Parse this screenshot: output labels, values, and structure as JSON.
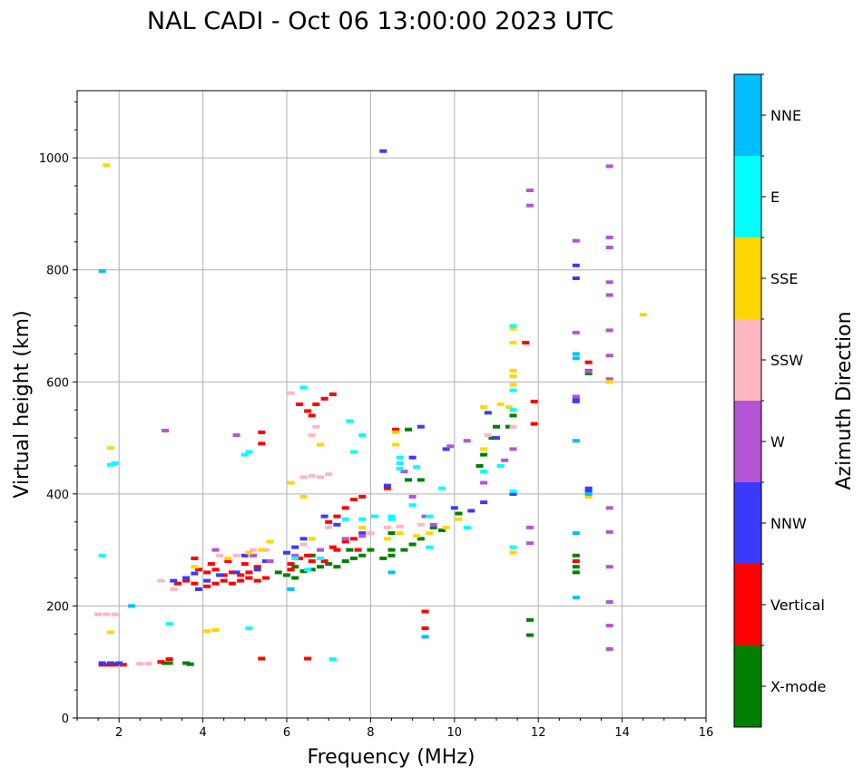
{
  "chart_data": {
    "type": "scatter",
    "title": "NAL CADI - Oct 06 13:00:00 2023 UTC",
    "xlabel": "Frequency (MHz)",
    "ylabel": "Virtual height (km)",
    "xlim": [
      1.0,
      16.0
    ],
    "ylim": [
      0,
      1120
    ],
    "xticks": [
      2,
      4,
      6,
      8,
      10,
      12,
      14,
      16
    ],
    "yticks": [
      0,
      200,
      400,
      600,
      800,
      1000
    ],
    "grid": true,
    "colorbar": {
      "label": "Azimuth Direction",
      "categories": [
        "X-mode",
        "Vertical",
        "NNW",
        "W",
        "SSW",
        "SSE",
        "E",
        "NNE"
      ],
      "colors": [
        "#008000",
        "#ff0000",
        "#3a3aff",
        "#b455d5",
        "#ffb6c1",
        "#ffd700",
        "#00ffff",
        "#00bfff"
      ]
    },
    "series": [
      {
        "name": "X-mode",
        "points": [
          [
            1.6,
            96
          ],
          [
            1.9,
            96
          ],
          [
            3.1,
            98
          ],
          [
            3.2,
            98
          ],
          [
            3.6,
            98
          ],
          [
            3.7,
            96
          ],
          [
            5.8,
            260
          ],
          [
            6.0,
            255
          ],
          [
            6.2,
            250
          ],
          [
            6.4,
            262
          ],
          [
            6.6,
            265
          ],
          [
            6.8,
            270
          ],
          [
            7.0,
            275
          ],
          [
            7.2,
            270
          ],
          [
            7.4,
            280
          ],
          [
            7.6,
            285
          ],
          [
            7.8,
            290
          ],
          [
            8.3,
            285
          ],
          [
            8.5,
            290
          ],
          [
            8.5,
            330
          ],
          [
            8.8,
            300
          ],
          [
            9.0,
            310
          ],
          [
            9.2,
            320
          ],
          [
            8.9,
            425
          ],
          [
            9.2,
            425
          ],
          [
            8.9,
            515
          ],
          [
            9.7,
            335
          ],
          [
            10.1,
            365
          ],
          [
            10.6,
            450
          ],
          [
            10.7,
            470
          ],
          [
            10.9,
            500
          ],
          [
            11.0,
            520
          ],
          [
            11.3,
            520
          ],
          [
            11.4,
            540
          ],
          [
            12.9,
            290
          ],
          [
            12.9,
            270
          ],
          [
            12.9,
            260
          ],
          [
            11.8,
            175
          ],
          [
            11.8,
            148
          ],
          [
            13.2,
            615
          ],
          [
            6.2,
            270
          ],
          [
            6.6,
            290
          ],
          [
            7.5,
            300
          ],
          [
            8.0,
            300
          ],
          [
            8.5,
            300
          ],
          [
            9.5,
            340
          ]
        ]
      },
      {
        "name": "Vertical",
        "points": [
          [
            1.6,
            95
          ],
          [
            1.75,
            95
          ],
          [
            1.9,
            95
          ],
          [
            2.1,
            95
          ],
          [
            3.0,
            100
          ],
          [
            3.2,
            105
          ],
          [
            5.4,
            106
          ],
          [
            6.5,
            106
          ],
          [
            3.4,
            240
          ],
          [
            3.6,
            245
          ],
          [
            3.8,
            240
          ],
          [
            3.9,
            230
          ],
          [
            4.1,
            235
          ],
          [
            4.3,
            240
          ],
          [
            4.5,
            245
          ],
          [
            4.7,
            240
          ],
          [
            4.9,
            245
          ],
          [
            5.1,
            250
          ],
          [
            5.3,
            245
          ],
          [
            5.5,
            250
          ],
          [
            3.9,
            265
          ],
          [
            4.1,
            260
          ],
          [
            4.3,
            265
          ],
          [
            4.5,
            255
          ],
          [
            4.7,
            260
          ],
          [
            4.9,
            255
          ],
          [
            5.1,
            260
          ],
          [
            5.3,
            270
          ],
          [
            3.8,
            285
          ],
          [
            4.2,
            275
          ],
          [
            4.6,
            280
          ],
          [
            5.0,
            275
          ],
          [
            6.1,
            275
          ],
          [
            6.3,
            285
          ],
          [
            6.5,
            290
          ],
          [
            6.8,
            300
          ],
          [
            7.1,
            305
          ],
          [
            7.4,
            315
          ],
          [
            7.6,
            320
          ],
          [
            6.1,
            265
          ],
          [
            6.6,
            280
          ],
          [
            6.9,
            280
          ],
          [
            7.0,
            350
          ],
          [
            7.2,
            360
          ],
          [
            7.4,
            375
          ],
          [
            7.6,
            390
          ],
          [
            7.8,
            395
          ],
          [
            7.7,
            300
          ],
          [
            7.2,
            300
          ],
          [
            6.3,
            560
          ],
          [
            6.5,
            548
          ],
          [
            6.6,
            540
          ],
          [
            6.7,
            560
          ],
          [
            6.9,
            570
          ],
          [
            7.1,
            578
          ],
          [
            5.4,
            490
          ],
          [
            5.4,
            510
          ],
          [
            11.9,
            565
          ],
          [
            11.9,
            525
          ],
          [
            11.7,
            670
          ],
          [
            9.3,
            190
          ],
          [
            9.3,
            160
          ],
          [
            12.9,
            280
          ],
          [
            13.2,
            635
          ],
          [
            13.2,
            620
          ],
          [
            8.4,
            410
          ],
          [
            8.6,
            515
          ]
        ]
      },
      {
        "name": "NNW",
        "points": [
          [
            1.6,
            98
          ],
          [
            1.8,
            98
          ],
          [
            2.0,
            98
          ],
          [
            3.3,
            245
          ],
          [
            3.6,
            250
          ],
          [
            3.8,
            258
          ],
          [
            4.1,
            245
          ],
          [
            4.4,
            255
          ],
          [
            4.8,
            260
          ],
          [
            5.3,
            265
          ],
          [
            5.5,
            280
          ],
          [
            6.0,
            295
          ],
          [
            6.2,
            305
          ],
          [
            6.4,
            320
          ],
          [
            8.3,
            1012
          ],
          [
            8.4,
            415
          ],
          [
            9.0,
            465
          ],
          [
            9.2,
            520
          ],
          [
            9.8,
            480
          ],
          [
            10.0,
            375
          ],
          [
            10.4,
            370
          ],
          [
            10.7,
            385
          ],
          [
            10.8,
            545
          ],
          [
            11.0,
            500
          ],
          [
            11.4,
            400
          ],
          [
            12.9,
            808
          ],
          [
            12.9,
            785
          ],
          [
            12.9,
            570
          ],
          [
            12.9,
            565
          ],
          [
            13.2,
            410
          ],
          [
            13.2,
            405
          ],
          [
            6.9,
            360
          ],
          [
            7.2,
            345
          ],
          [
            3.9,
            230
          ],
          [
            5.0,
            290
          ],
          [
            7.8,
            330
          ]
        ]
      },
      {
        "name": "W",
        "points": [
          [
            3.1,
            513
          ],
          [
            4.8,
            505
          ],
          [
            5.6,
            280
          ],
          [
            6.2,
            290
          ],
          [
            6.8,
            300
          ],
          [
            7.4,
            320
          ],
          [
            7.8,
            325
          ],
          [
            8.8,
            440
          ],
          [
            9.0,
            395
          ],
          [
            9.3,
            360
          ],
          [
            9.5,
            345
          ],
          [
            9.9,
            485
          ],
          [
            10.3,
            495
          ],
          [
            10.7,
            420
          ],
          [
            11.2,
            460
          ],
          [
            11.4,
            480
          ],
          [
            11.8,
            942
          ],
          [
            11.8,
            915
          ],
          [
            11.8,
            340
          ],
          [
            11.8,
            312
          ],
          [
            12.9,
            852
          ],
          [
            12.9,
            688
          ],
          [
            12.9,
            574
          ],
          [
            13.2,
            619
          ],
          [
            13.7,
            985
          ],
          [
            13.7,
            858
          ],
          [
            13.7,
            840
          ],
          [
            13.7,
            778
          ],
          [
            13.7,
            755
          ],
          [
            13.7,
            692
          ],
          [
            13.7,
            647
          ],
          [
            13.7,
            605
          ],
          [
            13.7,
            375
          ],
          [
            13.7,
            332
          ],
          [
            13.7,
            270
          ],
          [
            13.7,
            207
          ],
          [
            13.7,
            165
          ],
          [
            13.7,
            123
          ],
          [
            4.3,
            300
          ],
          [
            5.2,
            290
          ]
        ]
      },
      {
        "name": "SSW",
        "points": [
          [
            1.5,
            185
          ],
          [
            1.7,
            185
          ],
          [
            1.9,
            185
          ],
          [
            2.5,
            97
          ],
          [
            2.7,
            97
          ],
          [
            3.0,
            245
          ],
          [
            3.3,
            230
          ],
          [
            4.4,
            290
          ],
          [
            4.8,
            290
          ],
          [
            5.2,
            300
          ],
          [
            5.5,
            300
          ],
          [
            6.4,
            430
          ],
          [
            6.6,
            432
          ],
          [
            6.8,
            430
          ],
          [
            7.0,
            435
          ],
          [
            6.6,
            505
          ],
          [
            6.7,
            520
          ],
          [
            6.4,
            310
          ],
          [
            7.0,
            340
          ],
          [
            8.0,
            330
          ],
          [
            8.4,
            340
          ],
          [
            8.7,
            342
          ],
          [
            9.2,
            345
          ],
          [
            10.8,
            505
          ],
          [
            11.4,
            520
          ],
          [
            13.7,
            600
          ],
          [
            6.1,
            580
          ]
        ]
      },
      {
        "name": "SSE",
        "points": [
          [
            1.7,
            987
          ],
          [
            1.8,
            482
          ],
          [
            1.8,
            153
          ],
          [
            4.1,
            155
          ],
          [
            4.3,
            157
          ],
          [
            5.1,
            295
          ],
          [
            5.4,
            300
          ],
          [
            5.6,
            315
          ],
          [
            6.1,
            420
          ],
          [
            6.4,
            395
          ],
          [
            6.8,
            488
          ],
          [
            7.8,
            340
          ],
          [
            8.4,
            320
          ],
          [
            8.7,
            330
          ],
          [
            8.6,
            510
          ],
          [
            8.6,
            488
          ],
          [
            9.1,
            325
          ],
          [
            9.4,
            330
          ],
          [
            9.8,
            340
          ],
          [
            10.1,
            355
          ],
          [
            10.7,
            555
          ],
          [
            10.7,
            480
          ],
          [
            11.1,
            560
          ],
          [
            11.3,
            555
          ],
          [
            11.4,
            695
          ],
          [
            11.4,
            670
          ],
          [
            11.4,
            620
          ],
          [
            11.4,
            610
          ],
          [
            11.4,
            595
          ],
          [
            11.4,
            295
          ],
          [
            13.2,
            395
          ],
          [
            13.7,
            600
          ],
          [
            14.5,
            720
          ],
          [
            4.6,
            285
          ],
          [
            3.8,
            270
          ],
          [
            6.6,
            320
          ]
        ]
      },
      {
        "name": "E",
        "points": [
          [
            1.6,
            290
          ],
          [
            1.8,
            452
          ],
          [
            1.9,
            455
          ],
          [
            5.0,
            470
          ],
          [
            5.1,
            475
          ],
          [
            6.2,
            285
          ],
          [
            6.5,
            265
          ],
          [
            6.8,
            285
          ],
          [
            7.5,
            530
          ],
          [
            7.8,
            505
          ],
          [
            7.6,
            475
          ],
          [
            7.4,
            355
          ],
          [
            7.8,
            355
          ],
          [
            8.1,
            360
          ],
          [
            8.5,
            360
          ],
          [
            8.5,
            355
          ],
          [
            8.7,
            465
          ],
          [
            8.7,
            455
          ],
          [
            8.7,
            445
          ],
          [
            9.1,
            448
          ],
          [
            9.0,
            380
          ],
          [
            9.4,
            360
          ],
          [
            9.4,
            305
          ],
          [
            9.7,
            410
          ],
          [
            10.3,
            340
          ],
          [
            10.7,
            440
          ],
          [
            11.1,
            450
          ],
          [
            11.4,
            700
          ],
          [
            11.4,
            585
          ],
          [
            11.4,
            550
          ],
          [
            11.4,
            405
          ],
          [
            11.4,
            305
          ],
          [
            3.2,
            168
          ],
          [
            5.1,
            160
          ],
          [
            7.1,
            105
          ],
          [
            6.4,
            590
          ]
        ]
      },
      {
        "name": "NNE",
        "points": [
          [
            1.6,
            798
          ],
          [
            2.3,
            200
          ],
          [
            12.9,
            650
          ],
          [
            12.9,
            642
          ],
          [
            12.9,
            495
          ],
          [
            12.9,
            330
          ],
          [
            12.9,
            215
          ],
          [
            9.3,
            145
          ],
          [
            13.2,
            400
          ],
          [
            8.5,
            260
          ],
          [
            6.1,
            230
          ]
        ]
      }
    ]
  }
}
